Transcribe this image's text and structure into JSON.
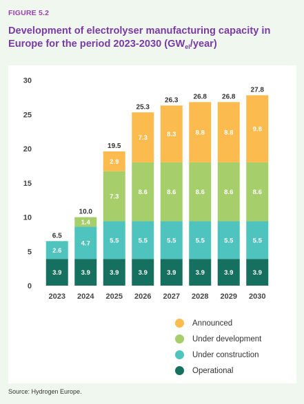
{
  "figure_label": "FIGURE 5.2",
  "title_main": "Development of electrolyser manufacturing capacity in Europe for the period 2023-2030 (GW",
  "title_sub": "el",
  "title_end": "/year)",
  "source": "Source: Hydrogen Europe.",
  "chart_data": {
    "type": "bar",
    "stacked": true,
    "categories": [
      "2023",
      "2024",
      "2025",
      "2026",
      "2027",
      "2028",
      "2029",
      "2030"
    ],
    "ylim": [
      0,
      30
    ],
    "yticks": [
      0,
      5,
      10,
      15,
      20,
      25,
      30
    ],
    "grid": false,
    "legend_position": "bottom-right",
    "series": [
      {
        "name": "Operational",
        "color": "#16705f",
        "label_color": "#ffffff",
        "values": [
          3.9,
          3.9,
          3.9,
          3.9,
          3.9,
          3.9,
          3.9,
          3.9
        ]
      },
      {
        "name": "Under construction",
        "color": "#4fc3be",
        "label_color": "#ffffff",
        "values": [
          2.6,
          4.7,
          5.5,
          5.5,
          5.5,
          5.5,
          5.5,
          5.5
        ]
      },
      {
        "name": "Under development",
        "color": "#a6cf6c",
        "label_color": "#ffffff",
        "values": [
          null,
          1.4,
          7.3,
          8.6,
          8.6,
          8.6,
          8.6,
          8.6
        ]
      },
      {
        "name": "Announced",
        "color": "#fbbb4e",
        "label_color": "#ffffff",
        "values": [
          null,
          null,
          2.9,
          7.3,
          8.3,
          8.8,
          8.8,
          9.8
        ]
      }
    ],
    "totals": [
      "6.5",
      "10.0",
      "19.5",
      "25.3",
      "26.3",
      "26.8",
      "26.8",
      "27.8"
    ]
  },
  "legend": [
    {
      "label": "Announced",
      "color": "#fbbb4e"
    },
    {
      "label": "Under development",
      "color": "#a6cf6c"
    },
    {
      "label": "Under construction",
      "color": "#4fc3be"
    },
    {
      "label": "Operational",
      "color": "#16705f"
    }
  ]
}
